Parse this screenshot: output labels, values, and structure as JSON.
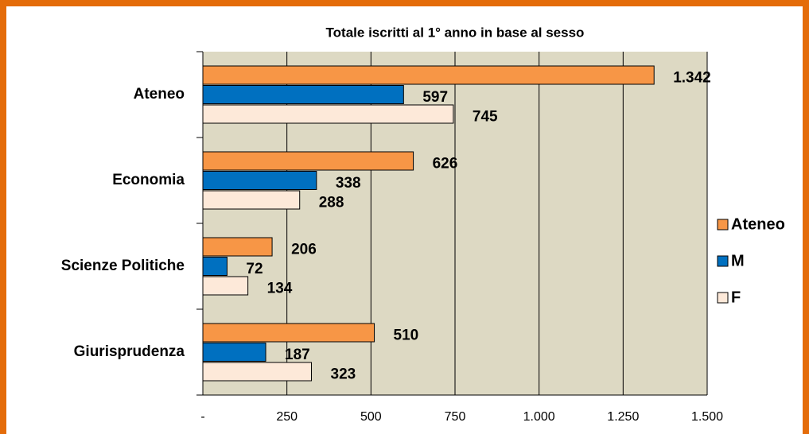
{
  "chart_data": {
    "type": "hbar",
    "title": "Totale iscritti al 1° anno in base al sesso",
    "categories": [
      "Ateneo",
      "Economia",
      "Scienze Politiche",
      "Giurisprudenza"
    ],
    "series": [
      {
        "name": "Ateneo",
        "color": "#f79646",
        "values": [
          1342,
          626,
          206,
          510
        ],
        "value_labels": [
          "1.342",
          "626",
          "206",
          "510"
        ]
      },
      {
        "name": "M",
        "color": "#0070c0",
        "values": [
          597,
          338,
          72,
          187
        ]
      },
      {
        "name": "F",
        "color": "#fde9d9",
        "values": [
          745,
          288,
          134,
          323
        ]
      }
    ],
    "xlim": [
      0,
      1500
    ],
    "xticks": [
      {
        "value": 0,
        "label": "-"
      },
      250,
      500,
      750,
      {
        "value": 1000,
        "label": "1.000"
      },
      {
        "value": 1250,
        "label": "1.250"
      },
      {
        "value": 1500,
        "label": "1.500"
      }
    ],
    "grid": true,
    "legend": "right"
  }
}
